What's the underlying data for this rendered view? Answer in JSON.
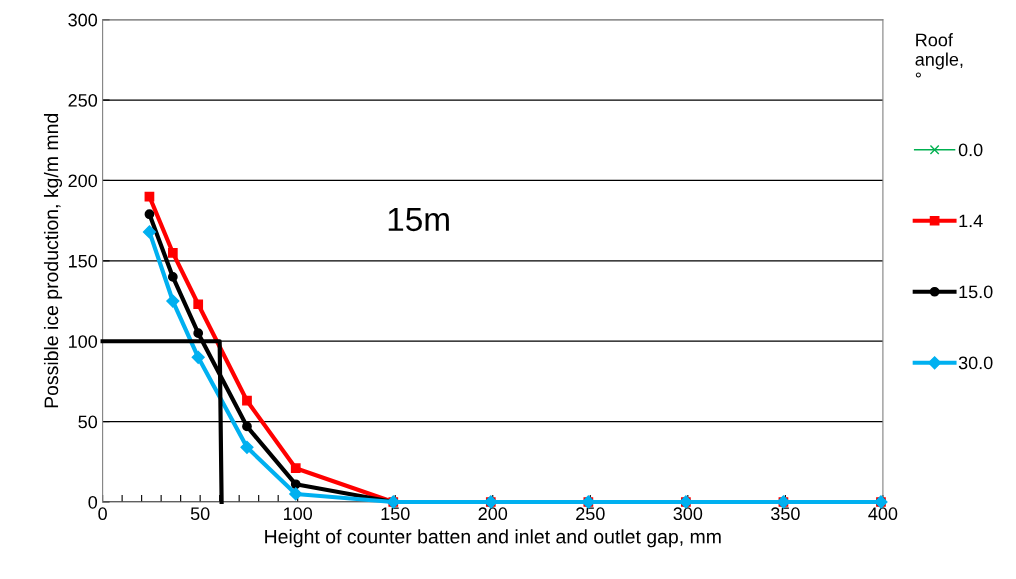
{
  "chart_data": {
    "type": "line",
    "xlabel": "Height of counter batten and inlet and outlet gap, mm",
    "ylabel": "Possible ice production, kg/m mnd",
    "legend_title": "Roof\nangle,\n°",
    "annotations": [
      "15m"
    ],
    "x": [
      24,
      36,
      49,
      74,
      99,
      149,
      199,
      249,
      299,
      349,
      399
    ],
    "series": [
      {
        "name": "0.0",
        "color": "#00b050",
        "marker": "cross",
        "values": [
          null,
          null,
          null,
          null,
          null,
          null,
          null,
          null,
          null,
          null,
          null
        ]
      },
      {
        "name": "1.4",
        "color": "#ff0000",
        "marker": "square",
        "values": [
          190,
          155,
          123,
          63,
          21,
          0,
          0,
          0,
          0,
          0,
          0
        ]
      },
      {
        "name": "15.0",
        "color": "#000000",
        "marker": "circle",
        "values": [
          179,
          140,
          105,
          47,
          11,
          0,
          0,
          0,
          0,
          0,
          0
        ]
      },
      {
        "name": "30.0",
        "color": "#00b0f0",
        "marker": "diamond",
        "values": [
          168,
          125,
          90,
          34,
          5,
          0,
          0,
          0,
          0,
          0,
          0
        ]
      },
      {
        "type": "line",
        "color": "#000000",
        "marker": "none",
        "x": [
          0,
          60,
          61
        ],
        "values": [
          100,
          100,
          0
        ]
      }
    ],
    "xlim": [
      0,
      400
    ],
    "ylim": [
      0,
      300
    ],
    "xticks": [
      0,
      {
        "value": 10,
        "label": null
      },
      {
        "value": 20,
        "label": null
      },
      {
        "value": 30,
        "label": null
      },
      {
        "value": 40,
        "label": null
      },
      50,
      {
        "value": 60,
        "label": null
      },
      {
        "value": 70,
        "label": null
      },
      {
        "value": 80,
        "label": null
      },
      {
        "value": 90,
        "label": null
      },
      100,
      150,
      200,
      250,
      300,
      350,
      400
    ],
    "yticks": [
      0,
      50,
      100,
      150,
      200,
      250,
      300
    ],
    "grid": "y",
    "legend": "right"
  }
}
